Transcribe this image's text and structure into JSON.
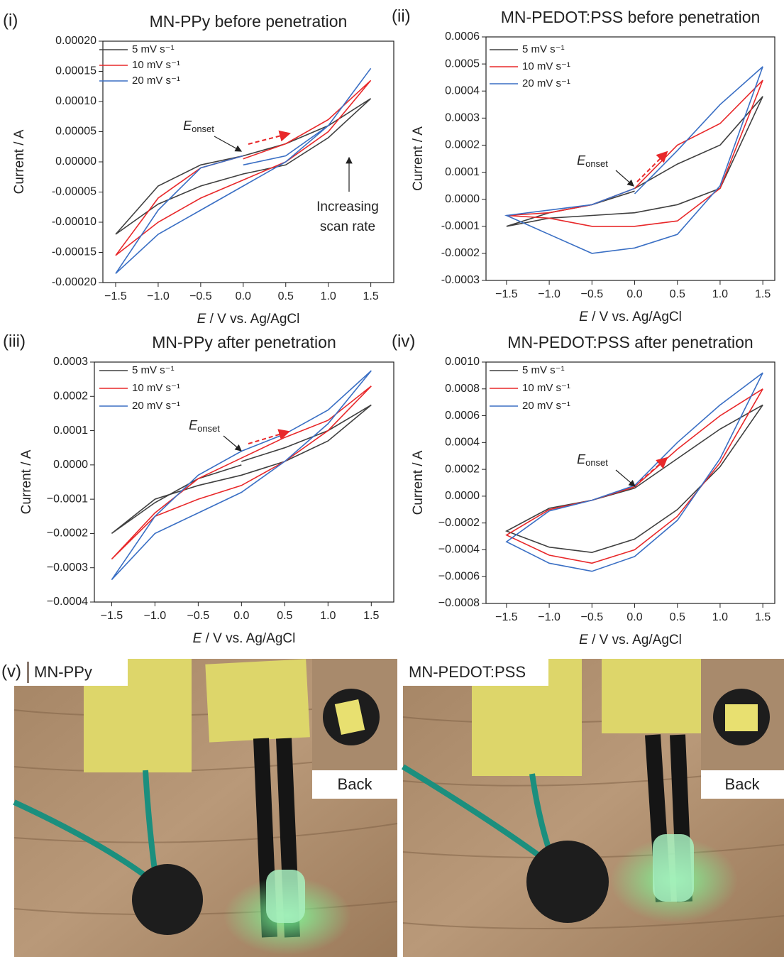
{
  "chart_data": [
    {
      "type": "line",
      "panel": "(i)",
      "title": "MN-PPy before penetration",
      "xlabel": {
        "italic": "E",
        "text": " / V vs. Ag/AgCl"
      },
      "ylabel": "Current / A",
      "x": [
        0,
        0.5,
        1,
        1.5,
        1,
        0.5,
        0,
        -0.5,
        -1,
        -1.5,
        -1,
        -0.5,
        0
      ],
      "xlim": [
        -1.65,
        1.77
      ],
      "xticks": [
        {
          "value": -1.5,
          "label": "−1.5"
        },
        {
          "value": -1,
          "label": "−1.0"
        },
        {
          "value": -0.5,
          "label": "−0.5"
        },
        {
          "value": 0,
          "label": "0.0"
        },
        0.5,
        {
          "value": 1,
          "label": "1.0"
        },
        1.5
      ],
      "ylim": [
        -0.0002,
        0.0002
      ],
      "yticks": [
        {
          "value": -0.0002,
          "label": "-0.00020"
        },
        {
          "value": -0.00015,
          "label": "-0.00015"
        },
        {
          "value": -0.0001,
          "label": "-0.00010"
        },
        {
          "value": -5e-05,
          "label": "-0.00005"
        },
        {
          "value": 0,
          "label": "0.00000"
        },
        {
          "value": 5e-05,
          "label": "0.00005"
        },
        {
          "value": 0.0001,
          "label": "0.00010"
        },
        {
          "value": 0.00015,
          "label": "0.00015"
        },
        {
          "value": 0.0002,
          "label": "0.00020"
        }
      ],
      "legend": "upper left",
      "series": [
        {
          "name": "5 mV s⁻¹",
          "color": "#404040",
          "values": [
            1e-05,
            3e-05,
            6e-05,
            0.000105,
            4e-05,
            -5e-06,
            -2e-05,
            -4e-05,
            -7e-05,
            -0.00012,
            -4e-05,
            -5e-06,
            1e-05
          ]
        },
        {
          "name": "10 mV s⁻¹",
          "color": "#e8282a",
          "values": [
            5e-06,
            3e-05,
            7e-05,
            0.000135,
            5e-05,
            0,
            -3e-05,
            -6e-05,
            -0.0001,
            -0.000155,
            -6e-05,
            -1e-05,
            1e-05
          ]
        },
        {
          "name": "20 mV s⁻¹",
          "color": "#3a6fc4",
          "values": [
            -5e-06,
            1e-05,
            6e-05,
            0.000155,
            6e-05,
            0,
            -4e-05,
            -8e-05,
            -0.00012,
            -0.000185,
            -8e-05,
            -1e-05,
            1e-05
          ]
        }
      ],
      "annotations": [
        {
          "symbol": "E",
          "sub": "onset"
        },
        {
          "lines": [
            "Increasing",
            "scan rate"
          ]
        }
      ]
    },
    {
      "type": "line",
      "panel": "(ii)",
      "title": "MN-PEDOT:PSS before penetration",
      "xlabel": {
        "italic": "E",
        "text": " / V vs. Ag/AgCl"
      },
      "ylabel": "Current / A",
      "x": [
        0,
        0.5,
        1,
        1.5,
        1,
        0.5,
        0,
        -0.5,
        -1,
        -1.5,
        -1,
        -0.5,
        0
      ],
      "xlim": [
        -1.74,
        1.64
      ],
      "xticks": [
        {
          "value": -1.5,
          "label": "−1.5"
        },
        {
          "value": -1,
          "label": "−1.0"
        },
        {
          "value": -0.5,
          "label": "−0.5"
        },
        {
          "value": 0,
          "label": "0.0"
        },
        0.5,
        {
          "value": 1,
          "label": "1.0"
        },
        1.5
      ],
      "ylim": [
        -0.0003,
        0.0006
      ],
      "yticks": [
        {
          "value": -0.0003,
          "label": "-0.0003"
        },
        {
          "value": -0.0002,
          "label": "-0.0002"
        },
        {
          "value": -0.0001,
          "label": "-0.0001"
        },
        {
          "value": 0,
          "label": "0.0000"
        },
        0.0001,
        0.0002,
        0.0003,
        0.0004,
        0.0005,
        0.0006
      ],
      "legend": "upper left",
      "series": [
        {
          "name": "5 mV s⁻¹",
          "color": "#404040",
          "values": [
            4e-05,
            0.00013,
            0.0002,
            0.00038,
            4e-05,
            -2e-05,
            -5e-05,
            -6e-05,
            -7e-05,
            -0.0001,
            -5e-05,
            -2e-05,
            3e-05
          ]
        },
        {
          "name": "10 mV s⁻¹",
          "color": "#e8282a",
          "values": [
            4e-05,
            0.0002,
            0.00028,
            0.00044,
            4e-05,
            -8e-05,
            -0.0001,
            -0.0001,
            -7e-05,
            -6e-05,
            -5e-05,
            -2e-05,
            4e-05
          ]
        },
        {
          "name": "20 mV s⁻¹",
          "color": "#3a6fc4",
          "values": [
            2e-05,
            0.00018,
            0.00035,
            0.00049,
            5e-05,
            -0.00013,
            -0.00018,
            -0.0002,
            -0.00013,
            -6e-05,
            -4e-05,
            -2e-05,
            4e-05
          ]
        }
      ],
      "annotations": [
        {
          "symbol": "E",
          "sub": "onset"
        }
      ]
    },
    {
      "type": "line",
      "panel": "(iii)",
      "title": "MN-PPy after penetration",
      "xlabel": {
        "italic": "E",
        "text": " / V vs. Ag/AgCl"
      },
      "ylabel": "Current / A",
      "x": [
        0,
        0.5,
        1,
        1.5,
        1,
        0.5,
        0,
        -0.5,
        -1,
        -1.5,
        -1,
        -0.5,
        0
      ],
      "xlim": [
        -1.7,
        1.76
      ],
      "xticks": [
        {
          "value": -1.5,
          "label": "−1.5"
        },
        {
          "value": -1,
          "label": "−1.0"
        },
        {
          "value": -0.5,
          "label": "−0.5"
        },
        {
          "value": 0,
          "label": "0.0"
        },
        0.5,
        {
          "value": 1,
          "label": "1.0"
        },
        1.5
      ],
      "ylim": [
        -0.0004,
        0.0003
      ],
      "yticks": [
        {
          "value": -0.0004,
          "label": "−0.0004"
        },
        {
          "value": -0.0003,
          "label": "−0.0003"
        },
        {
          "value": -0.0002,
          "label": "−0.0002"
        },
        {
          "value": -0.0001,
          "label": "−0.0001"
        },
        {
          "value": 0,
          "label": "0.0000"
        },
        0.0001,
        0.0002,
        0.0003
      ],
      "legend": "upper left",
      "series": [
        {
          "name": "5 mV s⁻¹",
          "color": "#404040",
          "values": [
            1e-05,
            5e-05,
            0.0001,
            0.000175,
            7e-05,
            1e-05,
            -3e-05,
            -6e-05,
            -0.0001,
            -0.0002,
            -0.00011,
            -4e-05,
            0
          ]
        },
        {
          "name": "10 mV s⁻¹",
          "color": "#e8282a",
          "values": [
            2e-05,
            8e-05,
            0.00013,
            0.00023,
            0.0001,
            1e-05,
            -6e-05,
            -0.0001,
            -0.00015,
            -0.000275,
            -0.00014,
            -4e-05,
            2e-05
          ]
        },
        {
          "name": "20 mV s⁻¹",
          "color": "#3a6fc4",
          "values": [
            4e-05,
            9e-05,
            0.00016,
            0.000275,
            0.00012,
            1e-05,
            -8e-05,
            -0.00014,
            -0.0002,
            -0.000335,
            -0.00015,
            -3e-05,
            4e-05
          ]
        }
      ],
      "annotations": [
        {
          "symbol": "E",
          "sub": "onset"
        }
      ]
    },
    {
      "type": "line",
      "panel": "(iv)",
      "title": "MN-PEDOT:PSS after penetration",
      "xlabel": {
        "italic": "E",
        "text": " / V vs. Ag/AgCl"
      },
      "ylabel": "Current / A",
      "x": [
        0,
        0.5,
        1,
        1.5,
        1,
        0.5,
        0,
        -0.5,
        -1,
        -1.5,
        -1,
        -0.5,
        0
      ],
      "xlim": [
        -1.74,
        1.64
      ],
      "xticks": [
        {
          "value": -1.5,
          "label": "−1.5"
        },
        {
          "value": -1,
          "label": "−1.0"
        },
        {
          "value": -0.5,
          "label": "−0.5"
        },
        {
          "value": 0,
          "label": "0.0"
        },
        0.5,
        {
          "value": 1,
          "label": "1.0"
        },
        1.5
      ],
      "ylim": [
        -0.0008,
        0.001
      ],
      "yticks": [
        {
          "value": -0.0008,
          "label": "−0.0008"
        },
        {
          "value": -0.0006,
          "label": "−0.0006"
        },
        {
          "value": -0.0004,
          "label": "−0.0004"
        },
        {
          "value": -0.0002,
          "label": "−0.0002"
        },
        {
          "value": 0,
          "label": "0.0000"
        },
        0.0002,
        0.0004,
        0.0006,
        0.0008,
        {
          "value": 0.001,
          "label": "0.0010"
        }
      ],
      "legend": "upper left",
      "series": [
        {
          "name": "5 mV s⁻¹",
          "color": "#404040",
          "values": [
            6e-05,
            0.00028,
            0.0005,
            0.00068,
            0.00022,
            -0.0001,
            -0.00032,
            -0.00042,
            -0.00038,
            -0.00026,
            -9e-05,
            -3e-05,
            6e-05
          ]
        },
        {
          "name": "10 mV s⁻¹",
          "color": "#e8282a",
          "values": [
            7e-05,
            0.00035,
            0.0006,
            0.0008,
            0.00025,
            -0.00015,
            -0.0004,
            -0.0005,
            -0.00044,
            -0.00029,
            -0.0001,
            -3e-05,
            7e-05
          ]
        },
        {
          "name": "20 mV s⁻¹",
          "color": "#3a6fc4",
          "values": [
            8e-05,
            0.0004,
            0.00068,
            0.00092,
            0.00028,
            -0.00018,
            -0.00045,
            -0.00056,
            -0.0005,
            -0.00034,
            -0.00011,
            -3e-05,
            8e-05
          ]
        }
      ],
      "annotations": [
        {
          "symbol": "E",
          "sub": "onset"
        }
      ]
    }
  ],
  "photos": {
    "panel": "(v)",
    "items": [
      {
        "caption": "MN-PPy",
        "inset": "Back"
      },
      {
        "caption": "MN-PEDOT:PSS",
        "inset": "Back"
      }
    ]
  }
}
